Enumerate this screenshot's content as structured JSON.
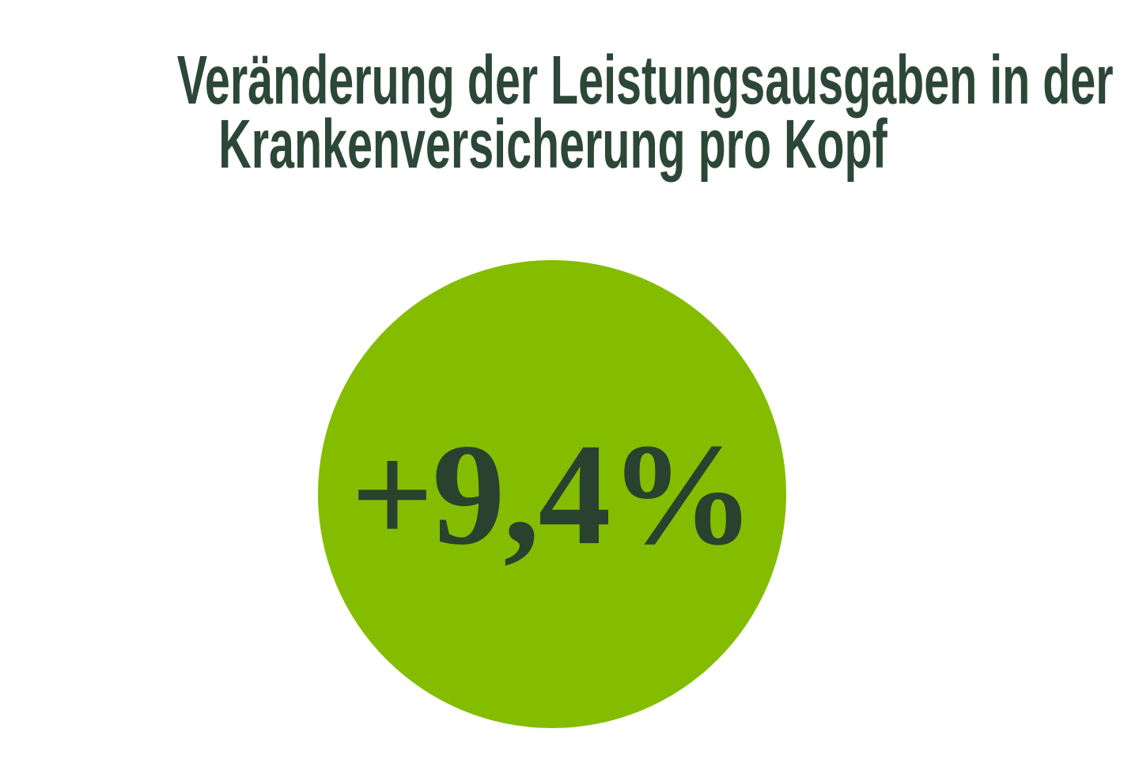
{
  "page": {
    "background_color": "#ffffff"
  },
  "title": {
    "line1": "Veränderung der Leistungsausgaben in der",
    "line2": "Krankenversicherung pro Kopf",
    "color": "#2c4737"
  },
  "kpi": {
    "value_label": "+9,4%",
    "circle_color": "#84bd00",
    "text_color": "#28422f"
  },
  "chart_data": {
    "type": "kpi",
    "title": "Veränderung der Leistungsausgaben in der Krankenversicherung pro Kopf",
    "value": 9.4,
    "unit": "%",
    "change_direction": "increase",
    "value_label": "+9,4%",
    "colors": {
      "circle": "#84bd00",
      "text": "#28422f"
    },
    "layout": {
      "title_position": "top-center",
      "marker": "filled-circle-centered",
      "legend": "none",
      "axes": "none",
      "grid": false
    }
  }
}
